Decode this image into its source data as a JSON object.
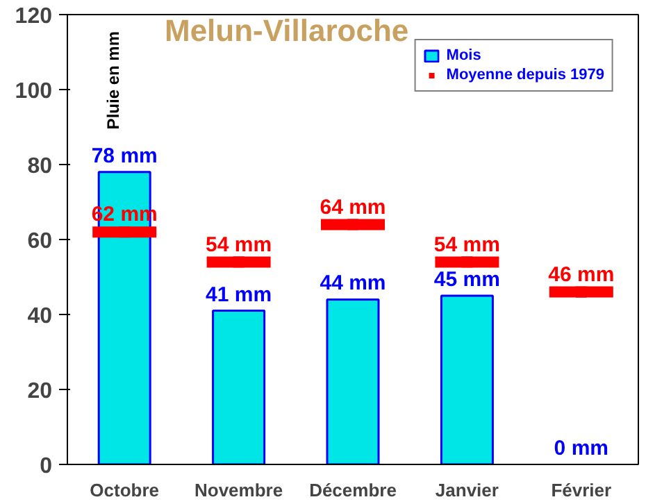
{
  "chart_data": {
    "type": "bar",
    "title": "Melun-Villaroche",
    "ylabel": "Pluie en mm",
    "categories": [
      "Octobre",
      "Novembre",
      "Décembre",
      "Janvier",
      "Février"
    ],
    "series": [
      {
        "name": "Mois",
        "type": "bar",
        "color": "#00e5e5",
        "values": [
          78,
          41,
          44,
          45,
          0
        ],
        "value_labels": [
          "78 mm",
          "41 mm",
          "44 mm",
          "45 mm",
          "0 mm"
        ]
      },
      {
        "name": "Moyenne depuis 1979",
        "type": "scatter",
        "color": "#ff0000",
        "values": [
          62,
          54,
          64,
          54,
          46
        ],
        "value_labels": [
          "62 mm",
          "54 mm",
          "64 mm",
          "54 mm",
          "46 mm"
        ]
      }
    ],
    "ylim": [
      0,
      120
    ],
    "yticks": [
      0,
      20,
      40,
      60,
      80,
      100,
      120
    ],
    "grid": false,
    "legend": "top right"
  }
}
